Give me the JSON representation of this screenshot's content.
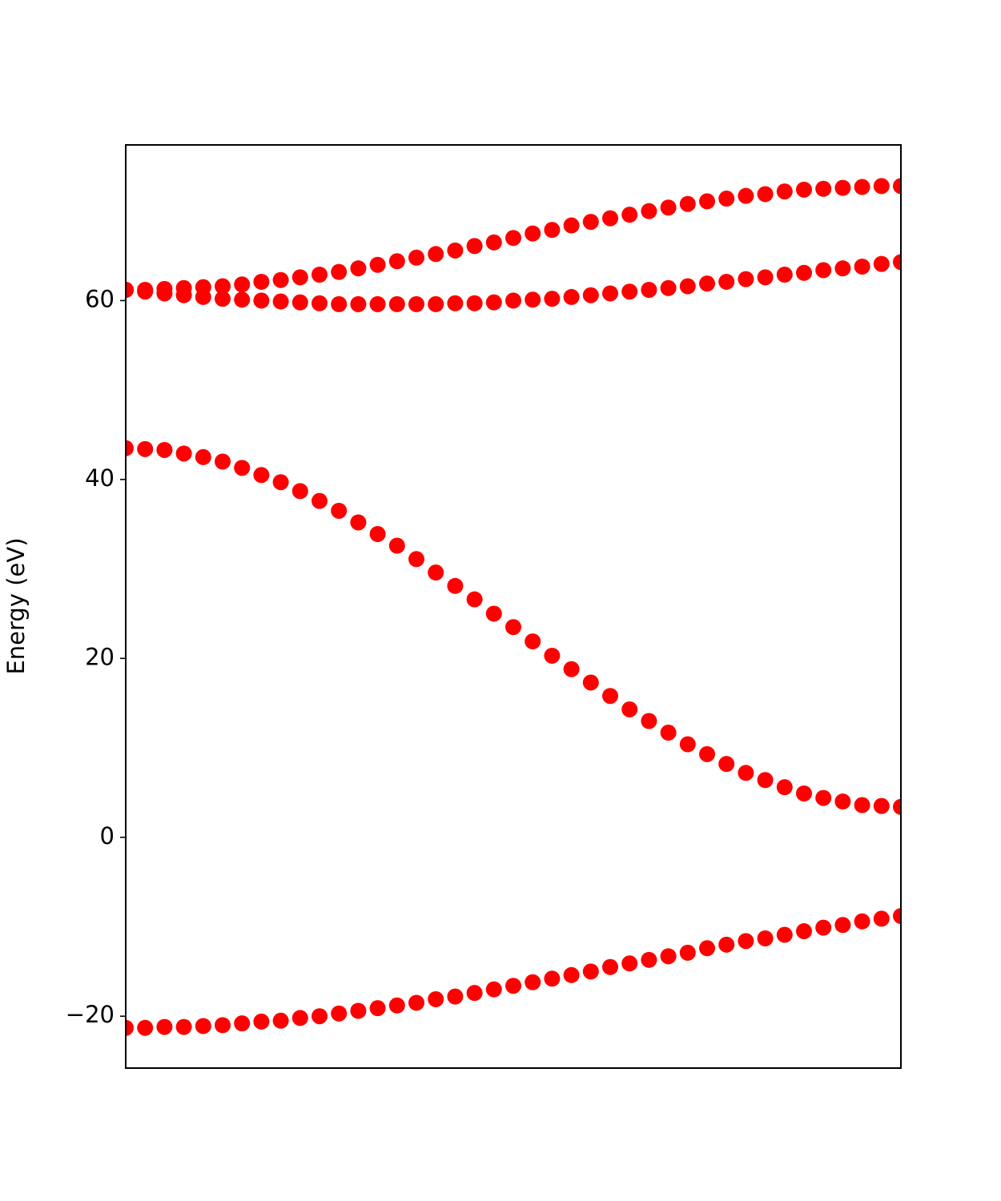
{
  "chart_data": {
    "type": "scatter",
    "ylabel": "Energy (eV)",
    "x": [
      0,
      1,
      2,
      3,
      4,
      5,
      6,
      7,
      8,
      9,
      10,
      11,
      12,
      13,
      14,
      15,
      16,
      17,
      18,
      19,
      20,
      21,
      22,
      23,
      24,
      25,
      26,
      27,
      28,
      29,
      30,
      31,
      32,
      33,
      34,
      35,
      36,
      37,
      38,
      39,
      40
    ],
    "series": [
      {
        "color": "#ff0000",
        "values": [
          61.2,
          61.2,
          61.3,
          61.4,
          61.5,
          61.6,
          61.8,
          62.1,
          62.3,
          62.6,
          62.9,
          63.2,
          63.6,
          64.0,
          64.4,
          64.8,
          65.2,
          65.6,
          66.1,
          66.5,
          67.0,
          67.5,
          67.9,
          68.4,
          68.8,
          69.2,
          69.6,
          70.0,
          70.4,
          70.8,
          71.1,
          71.4,
          71.7,
          71.9,
          72.2,
          72.4,
          72.5,
          72.6,
          72.7,
          72.8,
          72.8
        ]
      },
      {
        "color": "#ff0000",
        "values": [
          61.2,
          61.0,
          60.8,
          60.6,
          60.4,
          60.2,
          60.1,
          60.0,
          59.9,
          59.8,
          59.7,
          59.6,
          59.6,
          59.6,
          59.6,
          59.6,
          59.6,
          59.7,
          59.7,
          59.8,
          60.0,
          60.1,
          60.2,
          60.4,
          60.6,
          60.8,
          61.0,
          61.2,
          61.4,
          61.6,
          61.9,
          62.1,
          62.4,
          62.6,
          62.9,
          63.1,
          63.4,
          63.6,
          63.8,
          64.1,
          64.3
        ]
      },
      {
        "color": "#ff0000",
        "values": [
          43.5,
          43.4,
          43.3,
          42.9,
          42.5,
          42.0,
          41.3,
          40.5,
          39.7,
          38.7,
          37.6,
          36.5,
          35.2,
          33.9,
          32.6,
          31.1,
          29.6,
          28.1,
          26.6,
          25.0,
          23.5,
          21.9,
          20.3,
          18.8,
          17.3,
          15.8,
          14.3,
          13.0,
          11.7,
          10.4,
          9.3,
          8.2,
          7.2,
          6.4,
          5.6,
          4.9,
          4.4,
          4.0,
          3.6,
          3.5,
          3.4
        ]
      },
      {
        "color": "#ff0000",
        "values": [
          -21.3,
          -21.3,
          -21.2,
          -21.2,
          -21.1,
          -21.0,
          -20.8,
          -20.6,
          -20.5,
          -20.2,
          -20.0,
          -19.7,
          -19.4,
          -19.1,
          -18.8,
          -18.5,
          -18.1,
          -17.8,
          -17.4,
          -17.0,
          -16.6,
          -16.2,
          -15.8,
          -15.4,
          -15.0,
          -14.5,
          -14.1,
          -13.7,
          -13.3,
          -12.9,
          -12.4,
          -12.0,
          -11.6,
          -11.3,
          -10.9,
          -10.5,
          -10.1,
          -9.8,
          -9.4,
          -9.1,
          -8.8
        ]
      }
    ],
    "xlim": [
      0,
      40
    ],
    "ylim": [
      -25.8,
      77.4
    ],
    "yticks": [
      {
        "value": -20,
        "label": "−20"
      },
      0,
      20,
      40,
      60
    ],
    "marker_radius": 10
  }
}
